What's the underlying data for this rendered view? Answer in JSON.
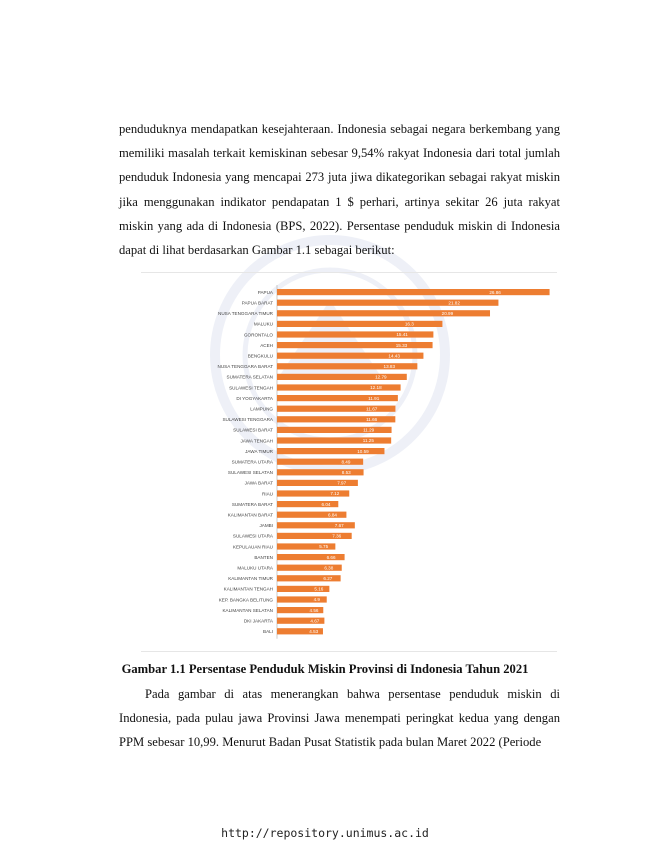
{
  "paragraph_1": "penduduknya mendapatkan kesejahteraan. Indonesia sebagai negara berkembang yang memiliki masalah terkait kemiskinan sebesar 9,54% rakyat Indonesia dari total jumlah penduduk Indonesia yang mencapai 273 juta jiwa dikategorikan sebagai rakyat miskin jika menggunakan indikator pendapatan 1 $ perhari, artinya sekitar 26 juta rakyat miskin yang ada di Indonesia (BPS, 2022). Persentase penduduk miskin di Indonesia dapat di lihat berdasarkan Gambar 1.1 sebagai berikut:",
  "caption": "Gambar 1.1 Persentase Penduduk Miskin Provinsi di Indonesia Tahun 2021",
  "paragraph_2": "Pada gambar di atas menerangkan bahwa persentase penduduk miskin di Indonesia, pada pulau jawa Provinsi Jawa menempati peringkat kedua yang dengan PPM sebesar 10,99. Menurut Badan Pusat Statistik pada bulan Maret 2022 (Periode",
  "footer": "http://repository.unimus.ac.id",
  "chart_data": {
    "type": "bar",
    "orientation": "horizontal",
    "bar_color": "#ED7D31",
    "categories": [
      "PAPUA",
      "PAPUA BARAT",
      "NUSA TENGGARA TIMUR",
      "MALUKU",
      "GORONTALO",
      "ACEH",
      "BENGKULU",
      "NUSA TENGGARA BARAT",
      "SUMATERA SELATAN",
      "SULAWESI TENGAH",
      "DI YOGYAKARTA",
      "LAMPUNG",
      "SULAWESI TENGGARA",
      "SULAWESI BARAT",
      "JAWA TENGAH",
      "JAWA TIMUR",
      "SUMATERA UTARA",
      "SULAWESI SELATAN",
      "JAWA BARAT",
      "RIAU",
      "SUMATERA BARAT",
      "KALIMANTAN BARAT",
      "JAMBI",
      "SULAWESI UTARA",
      "KEPULAUAN RIAU",
      "BANTEN",
      "MALUKU UTARA",
      "KALIMANTAN TIMUR",
      "KALIMANTAN TENGAH",
      "KEP. BANGKA BELITUNG",
      "KALIMANTAN SELATAN",
      "DKI JAKARTA",
      "BALI"
    ],
    "values": [
      26.86,
      21.82,
      20.99,
      16.3,
      15.41,
      15.33,
      14.43,
      13.83,
      12.79,
      12.18,
      11.91,
      11.67,
      11.66,
      11.29,
      11.25,
      10.59,
      8.49,
      8.53,
      7.97,
      7.12,
      6.04,
      6.84,
      7.67,
      7.36,
      5.75,
      6.66,
      6.38,
      6.27,
      5.16,
      4.9,
      4.56,
      4.67,
      4.53
    ],
    "data_labels": [
      "26.86",
      "21.82",
      "20.99",
      "16.3",
      "15.41",
      "15.33",
      "14.43",
      "13.83",
      "12.79",
      "12.18",
      "11.91",
      "11.67",
      "11.66",
      "11.29",
      "11.25",
      "10.59",
      "8.49",
      "8.53",
      "7.97",
      "7.12",
      "6.04",
      "6.84",
      "7.67",
      "7.36",
      "5.75",
      "6.66",
      "6.38",
      "6.27",
      "5.16",
      "4.9",
      "4.56",
      "4.67",
      "4.53"
    ],
    "xlim": [
      0,
      27
    ],
    "grid": false,
    "legend": "none"
  }
}
